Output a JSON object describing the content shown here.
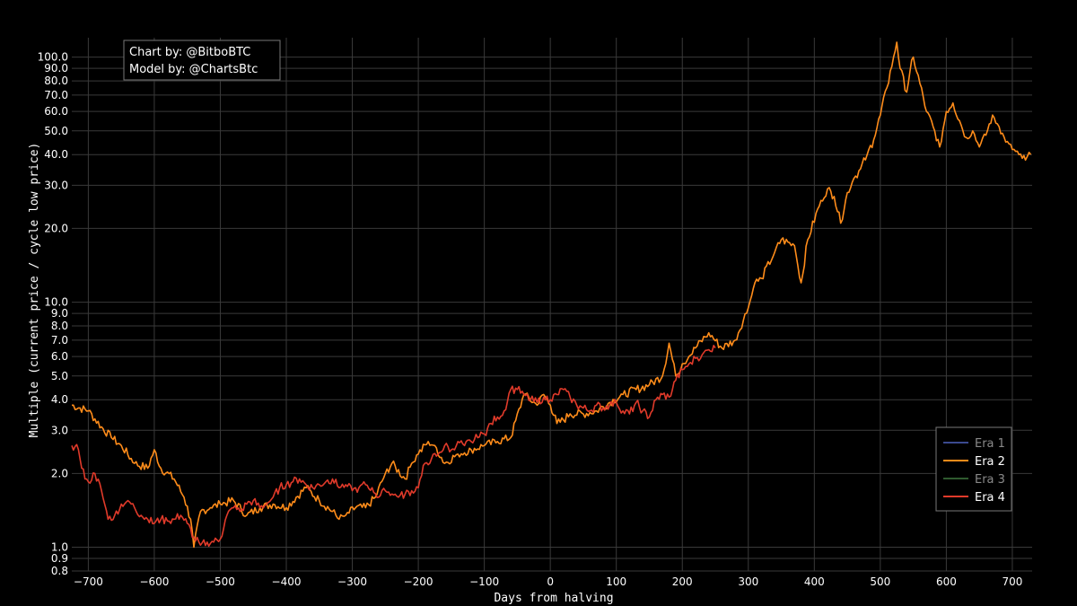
{
  "chart_data": {
    "type": "line",
    "title": "",
    "xlabel": "Days from halving",
    "ylabel": "Multiple (current price / cycle low price)",
    "xlim": [
      -725,
      730
    ],
    "ylim": [
      0.8,
      120
    ],
    "y_scale": "log",
    "grid": true,
    "legend_position": "bottom-right",
    "x_ticks": [
      -700,
      -600,
      -500,
      -400,
      -300,
      -200,
      -100,
      0,
      100,
      200,
      300,
      400,
      500,
      600,
      700
    ],
    "y_ticks": [
      0.8,
      0.9,
      1.0,
      2.0,
      3.0,
      4.0,
      5.0,
      6.0,
      7.0,
      8.0,
      9.0,
      10.0,
      20.0,
      30.0,
      40.0,
      50.0,
      60.0,
      70.0,
      80.0,
      90.0,
      100.0
    ],
    "y_tick_labels": [
      "0.8",
      "0.9",
      "1.0",
      "2.0",
      "3.0",
      "4.0",
      "5.0",
      "6.0",
      "7.0",
      "8.0",
      "9.0",
      "10.0",
      "20.0",
      "30.0",
      "40.0",
      "50.0",
      "60.0",
      "70.0",
      "80.0",
      "90.0",
      "100.0"
    ],
    "credits": [
      "Chart by: @BitboBTC",
      "Model by: @ChartsBtc"
    ],
    "series": [
      {
        "name": "Era 1",
        "color": "#3b4a8f",
        "legend_text_color": "#8a8a8a",
        "x": [],
        "y": []
      },
      {
        "name": "Era 2",
        "color": "#ff8c1a",
        "legend_text_color": "#ffffff",
        "x": [
          -725,
          -700,
          -680,
          -665,
          -650,
          -630,
          -610,
          -600,
          -590,
          -570,
          -555,
          -545,
          -540,
          -530,
          -515,
          -500,
          -480,
          -460,
          -440,
          -420,
          -400,
          -385,
          -370,
          -350,
          -330,
          -320,
          -310,
          -295,
          -280,
          -265,
          -250,
          -240,
          -220,
          -210,
          -200,
          -185,
          -175,
          -160,
          -140,
          -120,
          -100,
          -80,
          -60,
          -40,
          -20,
          -10,
          0,
          10,
          20,
          30,
          50,
          70,
          90,
          110,
          130,
          150,
          170,
          180,
          190,
          200,
          210,
          220,
          240,
          260,
          280,
          300,
          310,
          320,
          340,
          350,
          370,
          380,
          390,
          410,
          420,
          430,
          440,
          450,
          460,
          470,
          480,
          490,
          500,
          510,
          520,
          525,
          530,
          540,
          545,
          550,
          560,
          570,
          580,
          590,
          600,
          610,
          620,
          630,
          640,
          650,
          660,
          670,
          680,
          690,
          700,
          710,
          720,
          728
        ],
        "y": [
          3.8,
          3.6,
          3.1,
          2.8,
          2.6,
          2.2,
          2.1,
          2.5,
          2.1,
          1.9,
          1.6,
          1.3,
          1.0,
          1.4,
          1.45,
          1.5,
          1.55,
          1.35,
          1.45,
          1.5,
          1.45,
          1.6,
          1.75,
          1.55,
          1.4,
          1.3,
          1.35,
          1.45,
          1.45,
          1.6,
          2.0,
          2.2,
          1.9,
          2.2,
          2.4,
          2.7,
          2.6,
          2.2,
          2.4,
          2.5,
          2.6,
          2.7,
          2.8,
          4.2,
          3.8,
          4.2,
          3.8,
          3.2,
          3.3,
          3.5,
          3.5,
          3.6,
          3.9,
          4.2,
          4.4,
          4.6,
          5.0,
          6.8,
          5.0,
          5.6,
          6.0,
          6.5,
          7.5,
          6.5,
          7.0,
          9.5,
          12.0,
          12.5,
          16.0,
          18.0,
          17.0,
          12.0,
          18.0,
          26.0,
          29.0,
          27.0,
          21.0,
          28.0,
          32.0,
          35.0,
          40.0,
          46.0,
          58.0,
          75.0,
          100.0,
          115.0,
          90.0,
          72.0,
          88.0,
          100.0,
          78.0,
          60.0,
          52.0,
          43.0,
          60.0,
          65.0,
          55.0,
          47.0,
          50.0,
          43.0,
          48.0,
          58.0,
          52.0,
          45.0,
          42.0,
          40.0,
          38.0,
          40.0
        ]
      },
      {
        "name": "Era 3",
        "color": "#2f5a2f",
        "legend_text_color": "#8a8a8a",
        "x": [],
        "y": []
      },
      {
        "name": "Era 4",
        "color": "#e03a2a",
        "legend_text_color": "#ffffff",
        "x": [
          -725,
          -715,
          -705,
          -700,
          -690,
          -680,
          -670,
          -660,
          -650,
          -640,
          -630,
          -620,
          -610,
          -600,
          -590,
          -580,
          -570,
          -560,
          -550,
          -540,
          -530,
          -520,
          -510,
          -500,
          -490,
          -480,
          -470,
          -460,
          -450,
          -440,
          -430,
          -420,
          -410,
          -400,
          -390,
          -380,
          -370,
          -360,
          -350,
          -340,
          -330,
          -320,
          -310,
          -300,
          -290,
          -280,
          -270,
          -260,
          -250,
          -240,
          -230,
          -220,
          -210,
          -200,
          -190,
          -180,
          -170,
          -160,
          -150,
          -140,
          -130,
          -120,
          -110,
          -100,
          -90,
          -80,
          -70,
          -60,
          -50,
          -40,
          -30,
          -20,
          -10,
          0,
          10,
          20,
          30,
          40,
          50,
          60,
          70,
          80,
          90,
          100,
          110,
          120,
          130,
          140,
          150,
          160,
          170,
          180,
          190,
          200,
          210,
          220,
          230,
          240,
          250
        ],
        "y": [
          2.6,
          2.5,
          1.9,
          1.85,
          2.0,
          1.7,
          1.3,
          1.35,
          1.5,
          1.55,
          1.45,
          1.35,
          1.3,
          1.25,
          1.3,
          1.28,
          1.3,
          1.35,
          1.25,
          1.1,
          1.02,
          1.05,
          1.05,
          1.08,
          1.35,
          1.45,
          1.4,
          1.5,
          1.55,
          1.45,
          1.5,
          1.6,
          1.75,
          1.8,
          1.85,
          1.9,
          1.8,
          1.75,
          1.8,
          1.85,
          1.9,
          1.75,
          1.8,
          1.7,
          1.75,
          1.8,
          1.75,
          1.6,
          1.7,
          1.65,
          1.6,
          1.65,
          1.7,
          1.75,
          2.2,
          2.3,
          2.4,
          2.6,
          2.5,
          2.7,
          2.6,
          2.7,
          2.8,
          2.9,
          3.2,
          3.4,
          3.6,
          4.4,
          4.4,
          4.2,
          4.0,
          3.9,
          4.1,
          4.0,
          4.2,
          4.4,
          4.1,
          3.8,
          3.7,
          3.6,
          3.8,
          3.7,
          3.8,
          3.9,
          3.6,
          3.5,
          3.9,
          3.6,
          3.4,
          4.0,
          4.2,
          4.1,
          4.8,
          5.3,
          5.6,
          5.9,
          6.1,
          6.4,
          6.5
        ]
      }
    ]
  }
}
